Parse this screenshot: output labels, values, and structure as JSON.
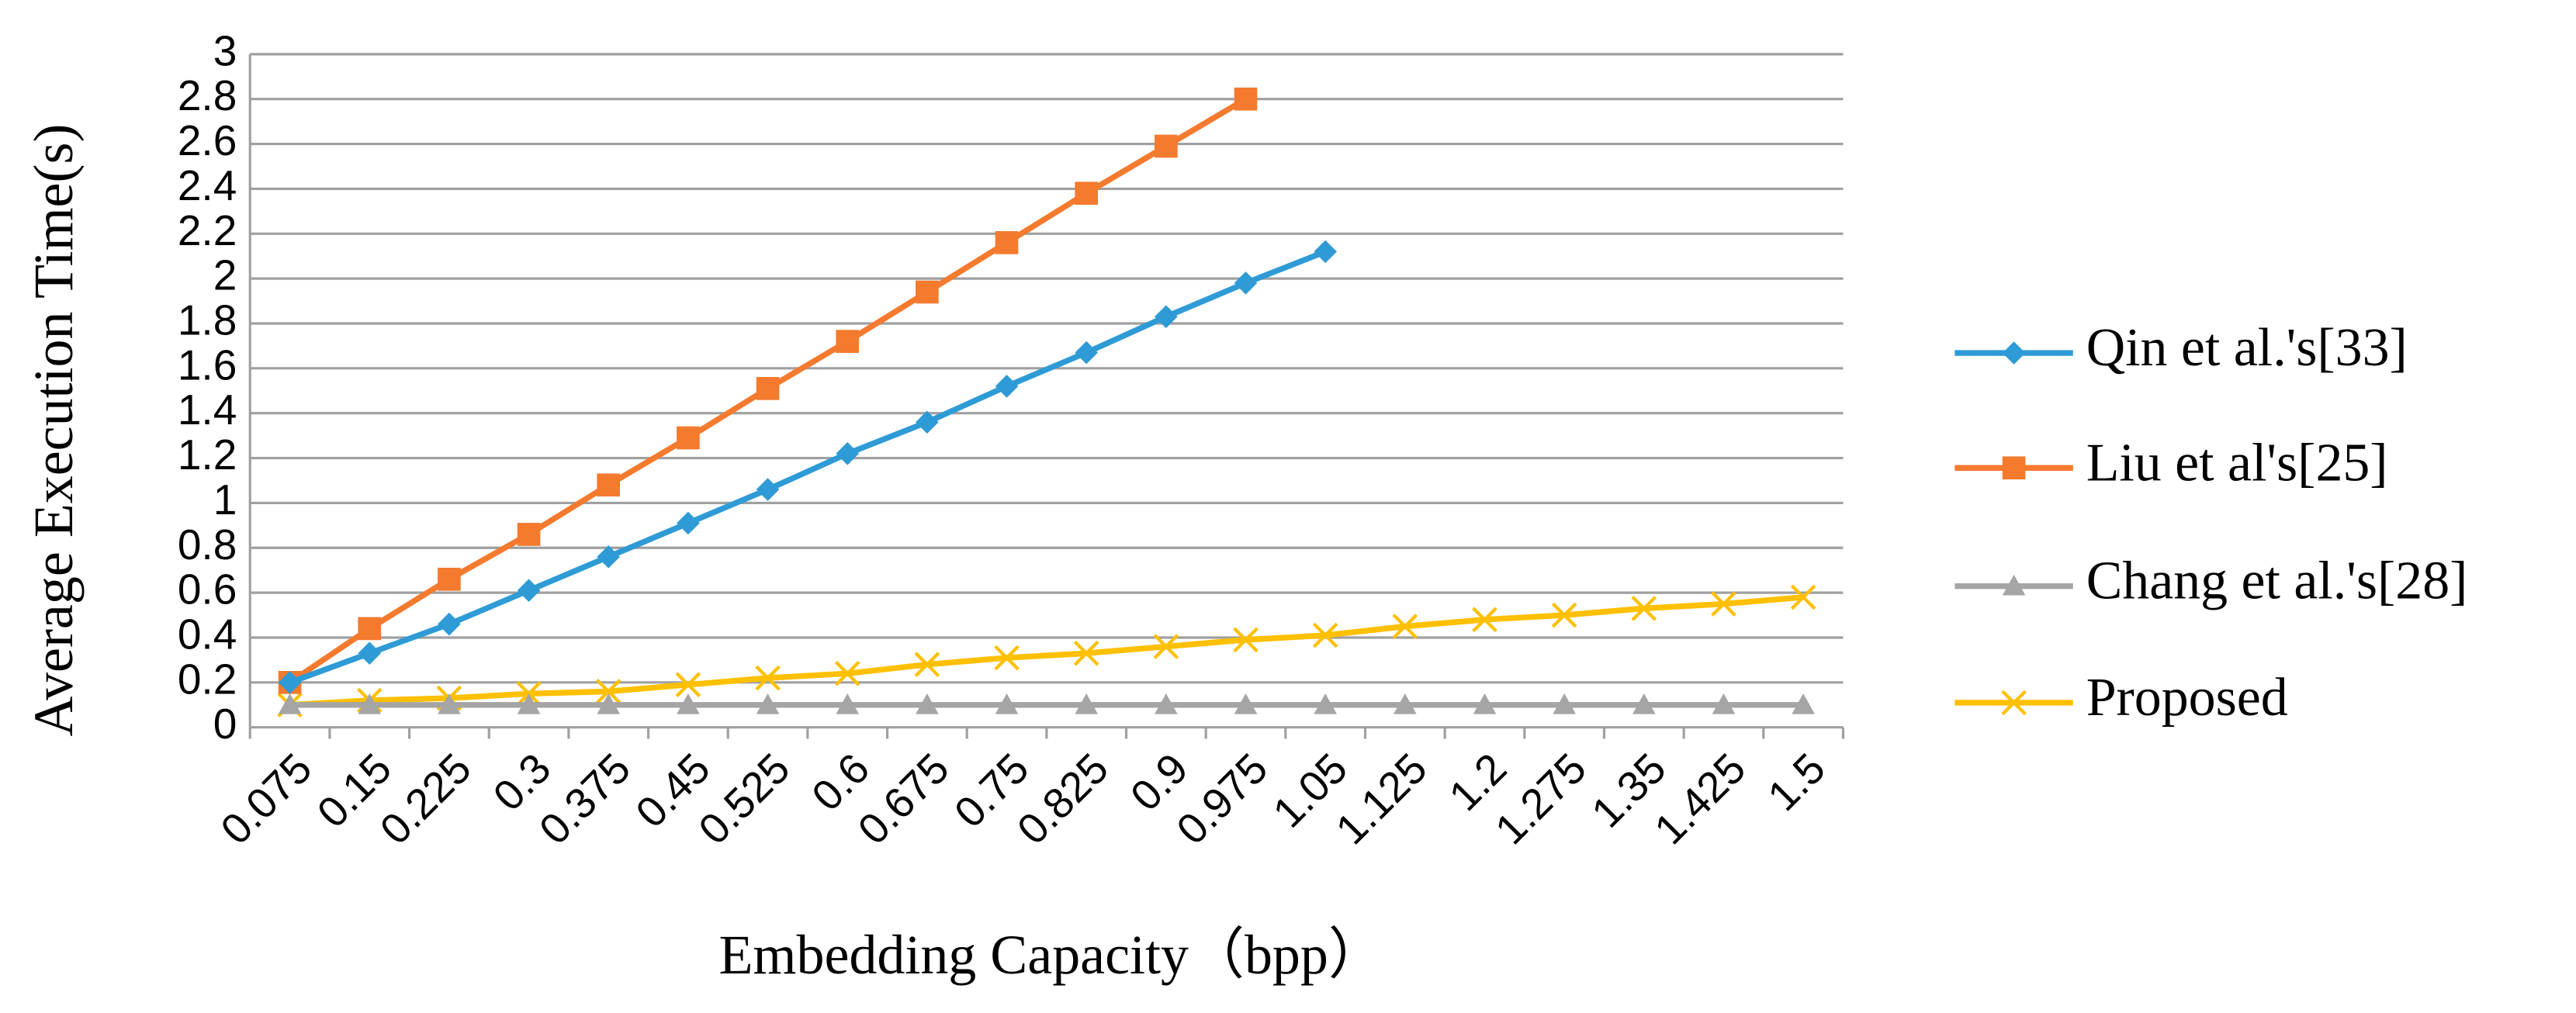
{
  "chart_data": {
    "type": "line",
    "xlabel": "Embedding Capacity（bpp）",
    "ylabel": "Average Execution Time(s)",
    "categories": [
      "0.075",
      "0.15",
      "0.225",
      "0.3",
      "0.375",
      "0.45",
      "0.525",
      "0.6",
      "0.675",
      "0.75",
      "0.825",
      "0.9",
      "0.975",
      "1.05",
      "1.125",
      "1.2",
      "1.275",
      "1.35",
      "1.425",
      "1.5"
    ],
    "series": [
      {
        "name": "Qin et al.'s[33]",
        "color": "#2e9bd6",
        "marker": "diamond",
        "values": [
          0.2,
          0.33,
          0.46,
          0.61,
          0.76,
          0.91,
          1.06,
          1.22,
          1.36,
          1.52,
          1.67,
          1.83,
          1.98,
          2.12,
          null,
          null,
          null,
          null,
          null,
          null
        ]
      },
      {
        "name": "Liu et al's[25]",
        "color": "#f47a2e",
        "marker": "square",
        "values": [
          0.2,
          0.44,
          0.66,
          0.86,
          1.08,
          1.29,
          1.51,
          1.72,
          1.94,
          2.16,
          2.38,
          2.59,
          2.8,
          null,
          null,
          null,
          null,
          null,
          null,
          null
        ]
      },
      {
        "name": "Chang et al.'s[28]",
        "color": "#a5a5a5",
        "marker": "triangle",
        "values": [
          0.1,
          0.1,
          0.1,
          0.1,
          0.1,
          0.1,
          0.1,
          0.1,
          0.1,
          0.1,
          0.1,
          0.1,
          0.1,
          0.1,
          0.1,
          0.1,
          0.1,
          0.1,
          0.1,
          0.1
        ]
      },
      {
        "name": "Proposed",
        "color": "#ffc000",
        "marker": "x",
        "values": [
          0.1,
          0.12,
          0.13,
          0.15,
          0.16,
          0.19,
          0.22,
          0.24,
          0.28,
          0.31,
          0.33,
          0.36,
          0.39,
          0.41,
          0.45,
          0.48,
          0.5,
          0.53,
          0.55,
          0.58
        ]
      }
    ],
    "ylim": [
      0,
      3
    ],
    "yticks": [
      0,
      0.2,
      0.4,
      0.6,
      0.8,
      1,
      1.2,
      1.4,
      1.6,
      1.8,
      2,
      2.2,
      2.4,
      2.6,
      2.8,
      3
    ],
    "grid": true,
    "legend": "right"
  }
}
